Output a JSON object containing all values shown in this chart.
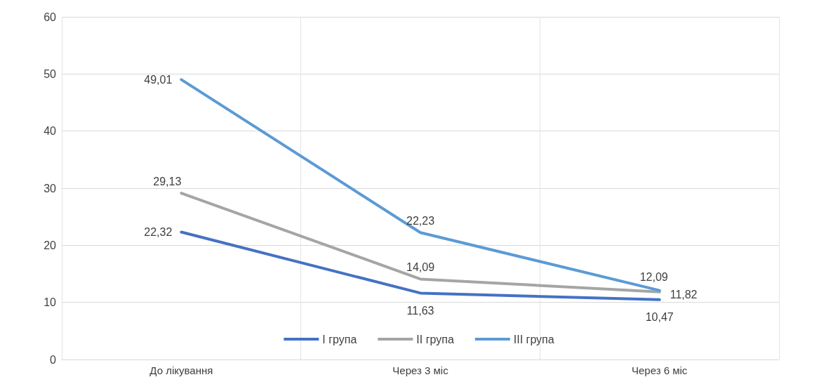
{
  "chart_data": {
    "type": "line",
    "categories": [
      "До лікування",
      "Через 3 міс",
      "Через 6 міс"
    ],
    "series": [
      {
        "name": "I група",
        "color": "#4472c4",
        "values": [
          22.32,
          11.63,
          10.47
        ],
        "value_labels": [
          "22,32",
          "11,63",
          "10,47"
        ]
      },
      {
        "name": "II група",
        "color": "#a5a5a5",
        "values": [
          29.13,
          14.09,
          11.82
        ],
        "value_labels": [
          "29,13",
          "14,09",
          "11,82"
        ]
      },
      {
        "name": "III група",
        "color": "#5b9bd5",
        "values": [
          49.01,
          22.23,
          12.09
        ],
        "value_labels": [
          "49,01",
          "22,23",
          "12,09"
        ]
      }
    ],
    "ylim": [
      0,
      60
    ],
    "yticks": [
      0,
      10,
      20,
      30,
      40,
      50,
      60
    ],
    "grid": true,
    "legend": "bottom",
    "marker": "none",
    "line_style": "solid"
  }
}
